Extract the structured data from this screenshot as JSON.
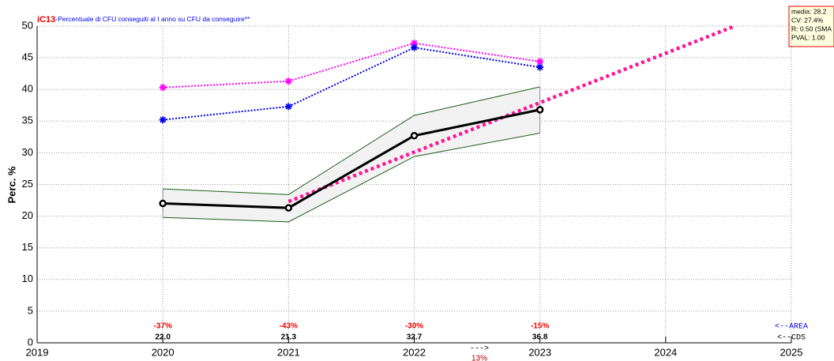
{
  "chart_data": {
    "type": "line",
    "title": "iC13",
    "subtitle": "-Percentuale di CFU conseguiti al I anno su CFU da conseguire**",
    "y_label": "Perc. %",
    "xlim": [
      2019,
      2025
    ],
    "xticks": [
      2019,
      2020,
      2021,
      2022,
      2023,
      2024,
      2025
    ],
    "ylim": [
      0,
      50
    ],
    "yticks": [
      0,
      5,
      10,
      15,
      20,
      25,
      30,
      35,
      40,
      45,
      50
    ],
    "grid": true,
    "x": [
      2020,
      2021,
      2022,
      2023
    ],
    "band": {
      "color": "#f2f2f2",
      "edge_color": "#1a5c1a",
      "upper": [
        24.3,
        23.4,
        35.9,
        40.4
      ],
      "lower": [
        19.8,
        19.1,
        29.4,
        33.1
      ]
    },
    "series": [
      {
        "color": "#ff00ff",
        "dash": true,
        "marker": "asterisk",
        "values": [
          40.3,
          41.3,
          47.3,
          44.4
        ]
      },
      {
        "color": "#0000ee",
        "dash": true,
        "marker": "asterisk",
        "values": [
          35.2,
          37.3,
          46.6,
          43.5
        ]
      },
      {
        "color": "#000000",
        "dash": false,
        "marker": "circle",
        "values": [
          22.0,
          21.3,
          32.7,
          36.8
        ],
        "value_labels": [
          "22.0",
          "21.3",
          "32.7",
          "36.8"
        ]
      }
    ],
    "trend": {
      "color": "#ff1493",
      "x": [
        2021,
        2024.55
      ],
      "values": [
        22.3,
        50
      ]
    },
    "changes": {
      "color": "#ee0000",
      "values": [
        -37,
        -43,
        -30,
        -15
      ],
      "value_labels": [
        "-37%",
        "-43%",
        "-30%",
        "-15%"
      ]
    },
    "annotations": {
      "area": "<--AREA",
      "cds": "<--CDS",
      "arrow": "--->",
      "note": "13%"
    },
    "stats": [
      "media: 28.2",
      "CV: 27.4%",
      "R: 0.50 (SMA",
      "PVAL: 1.00"
    ]
  }
}
